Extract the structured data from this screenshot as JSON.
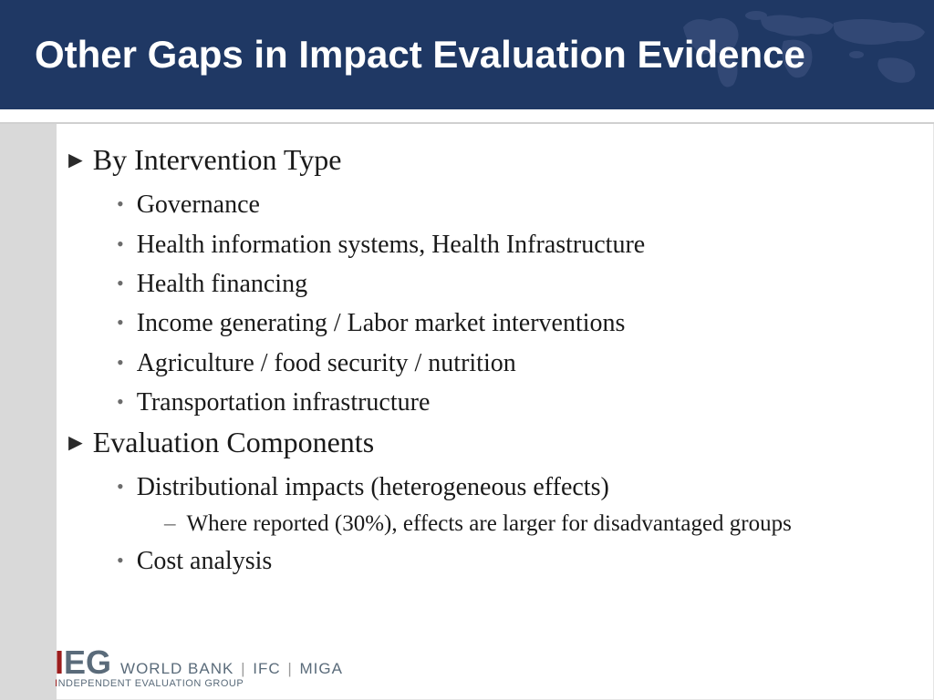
{
  "colors": {
    "header_bg": "#1f3864",
    "title_text": "#ffffff",
    "sidebar_bg": "#d9d9d9",
    "body_text": "#1a1a1a",
    "bullet_dot": "#6b6b6b",
    "logo_red": "#9b1c1c",
    "logo_gray": "#5a6b7a",
    "map_overlay": "#6b7aa8"
  },
  "typography": {
    "title_font": "Arial",
    "title_size_pt": 42,
    "body_font": "Garamond",
    "l1_size_pt": 32,
    "l2_size_pt": 28,
    "l3_size_pt": 25
  },
  "header": {
    "title": "Other Gaps in Impact Evaluation Evidence"
  },
  "sections": [
    {
      "heading": "By Intervention Type",
      "bullets": [
        {
          "text": "Governance"
        },
        {
          "text": "Health information systems, Health Infrastructure"
        },
        {
          "text": "Health financing"
        },
        {
          "text": "Income generating / Labor market interventions"
        },
        {
          "text": "Agriculture / food security / nutrition"
        },
        {
          "text": "Transportation infrastructure"
        }
      ]
    },
    {
      "heading": "Evaluation Components",
      "bullets": [
        {
          "text": "Distributional impacts (heterogeneous effects)",
          "sub": [
            "Where reported (30%), effects are larger for disadvantaged groups"
          ]
        },
        {
          "text": "Cost analysis"
        }
      ]
    }
  ],
  "footer": {
    "ieg_i": "I",
    "ieg_eg": "EG",
    "org1": "WORLD BANK",
    "org2": "IFC",
    "org3": "MIGA",
    "tagline_red": "I",
    "tagline_rest": "NDEPENDENT EVALUATION GROUP"
  }
}
